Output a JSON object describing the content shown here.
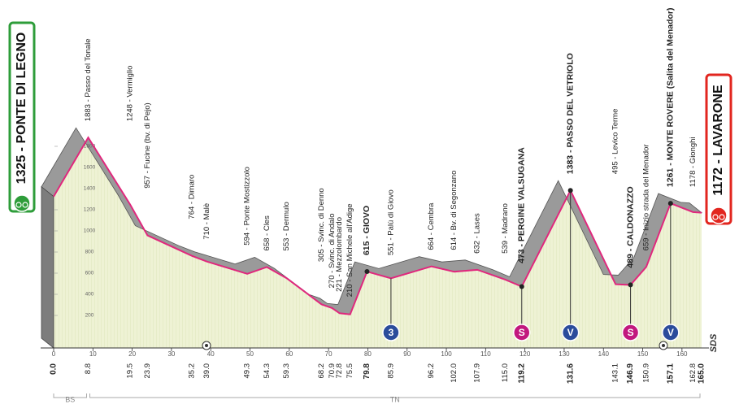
{
  "chart_data": {
    "type": "area",
    "line_color": "#e0287d",
    "fill_color": "#eef2d4",
    "side_color": "#9a9a9a",
    "logo": "SDS",
    "xlim": [
      0,
      165
    ],
    "xticks": [
      0,
      10,
      20,
      30,
      40,
      50,
      60,
      70,
      80,
      90,
      100,
      110,
      120,
      130,
      140,
      150,
      160
    ],
    "ylim": [
      0,
      2000
    ],
    "yticks": [
      200,
      400,
      600,
      800,
      1000,
      1200,
      1400,
      1600,
      1800
    ],
    "regions": [
      {
        "label": "BS",
        "from": 0,
        "to": 8.8
      },
      {
        "label": "TN",
        "from": 8.8,
        "to": 165
      }
    ],
    "waypoints": [
      {
        "km": 0,
        "km_label": "0.0",
        "elevation": 1325,
        "label": "1325 - PONTE DI LEGNO",
        "bold": true,
        "box": "start",
        "box_color": "#2e9d3a"
      },
      {
        "km": 8.8,
        "km_label": "8.8",
        "elevation": 1883,
        "label": "1883 - Passo del Tonale",
        "bold": false
      },
      {
        "km": 19.5,
        "km_label": "19.5",
        "elevation": 1248,
        "label": "1248 - Vermiglio",
        "bold": false
      },
      {
        "km": 23.9,
        "km_label": "23.9",
        "elevation": 957,
        "label": "957 - Fucine (bv. di Pejo)",
        "bold": false
      },
      {
        "km": 35.2,
        "km_label": "35.2",
        "elevation": 764,
        "label": "764 - Dimaro",
        "bold": false
      },
      {
        "km": 39.0,
        "km_label": "39.0",
        "elevation": 710,
        "label": "710 - Malè",
        "bold": false
      },
      {
        "km": 49.3,
        "km_label": "49.3",
        "elevation": 594,
        "label": "594 - Ponte Mostizzolo",
        "bold": false
      },
      {
        "km": 54.3,
        "km_label": "54.3",
        "elevation": 658,
        "label": "658 - Cles",
        "bold": false
      },
      {
        "km": 59.3,
        "km_label": "59.3",
        "elevation": 553,
        "label": "553 - Dermulo",
        "bold": false
      },
      {
        "km": 68.2,
        "km_label": "68.2",
        "elevation": 305,
        "label": "305 - Svinc. di Denno",
        "bold": false
      },
      {
        "km": 70.9,
        "km_label": "70.9",
        "elevation": 270,
        "label": "270 - Svinc. di Andalo",
        "bold": false
      },
      {
        "km": 72.8,
        "km_label": "72.8",
        "elevation": 221,
        "label": "221 - Mezzolombardo",
        "bold": false
      },
      {
        "km": 75.5,
        "km_label": "75.5",
        "elevation": 210,
        "label": "210 - San Michele all'Adige",
        "bold": false
      },
      {
        "km": 79.8,
        "km_label": "79.8",
        "elevation": 615,
        "label": "615 - GIOVO",
        "bold": true
      },
      {
        "km": 85.9,
        "km_label": "85.9",
        "elevation": 551,
        "label": "551 - Palù di Giovo",
        "bold": false
      },
      {
        "km": 96.2,
        "km_label": "96.2",
        "elevation": 664,
        "label": "664 - Cembra",
        "bold": false
      },
      {
        "km": 102.0,
        "km_label": "102.0",
        "elevation": 614,
        "label": "614 - Bv. di Segonzano",
        "bold": false
      },
      {
        "km": 107.9,
        "km_label": "107.9",
        "elevation": 632,
        "label": "632 - Lases",
        "bold": false
      },
      {
        "km": 115.0,
        "km_label": "115.0",
        "elevation": 539,
        "label": "539 - Madrano",
        "bold": false
      },
      {
        "km": 119.2,
        "km_label": "119.2",
        "elevation": 473,
        "label": "473 - PERGINE VALSUGANA",
        "bold": true
      },
      {
        "km": 131.6,
        "km_label": "131.6",
        "elevation": 1383,
        "label": "1383 - PASSO DEL VETRIOLO",
        "bold": true
      },
      {
        "km": 143.1,
        "km_label": "143.1",
        "elevation": 495,
        "label": "495 - Levico Terme",
        "bold": false
      },
      {
        "km": 146.9,
        "km_label": "146.9",
        "elevation": 489,
        "label": "489 - CALDONAZZO",
        "bold": true
      },
      {
        "km": 150.9,
        "km_label": "150.9",
        "elevation": 659,
        "label": "659 - Inizio strada del Menador",
        "bold": false
      },
      {
        "km": 157.1,
        "km_label": "157.1",
        "elevation": 1261,
        "label": "1261 - MONTE ROVERE (Salita del Menador)",
        "bold": true
      },
      {
        "km": 162.8,
        "km_label": "162.8",
        "elevation": 1178,
        "label": "1178 - Gionghi",
        "bold": false
      },
      {
        "km": 165.0,
        "km_label": "165.0",
        "elevation": 1172,
        "label": "1172 - LAVARONE",
        "bold": true,
        "box": "finish",
        "box_color": "#e2261f"
      }
    ],
    "markers": [
      {
        "km": 85.9,
        "label": "3",
        "color": "#2b4c9b"
      },
      {
        "km": 119.2,
        "label": "S",
        "color": "#c2187e"
      },
      {
        "km": 131.6,
        "label": "V",
        "color": "#2b4c9b"
      },
      {
        "km": 146.9,
        "label": "S",
        "color": "#c2187e"
      },
      {
        "km": 157.1,
        "label": "V",
        "color": "#2b4c9b"
      }
    ]
  }
}
